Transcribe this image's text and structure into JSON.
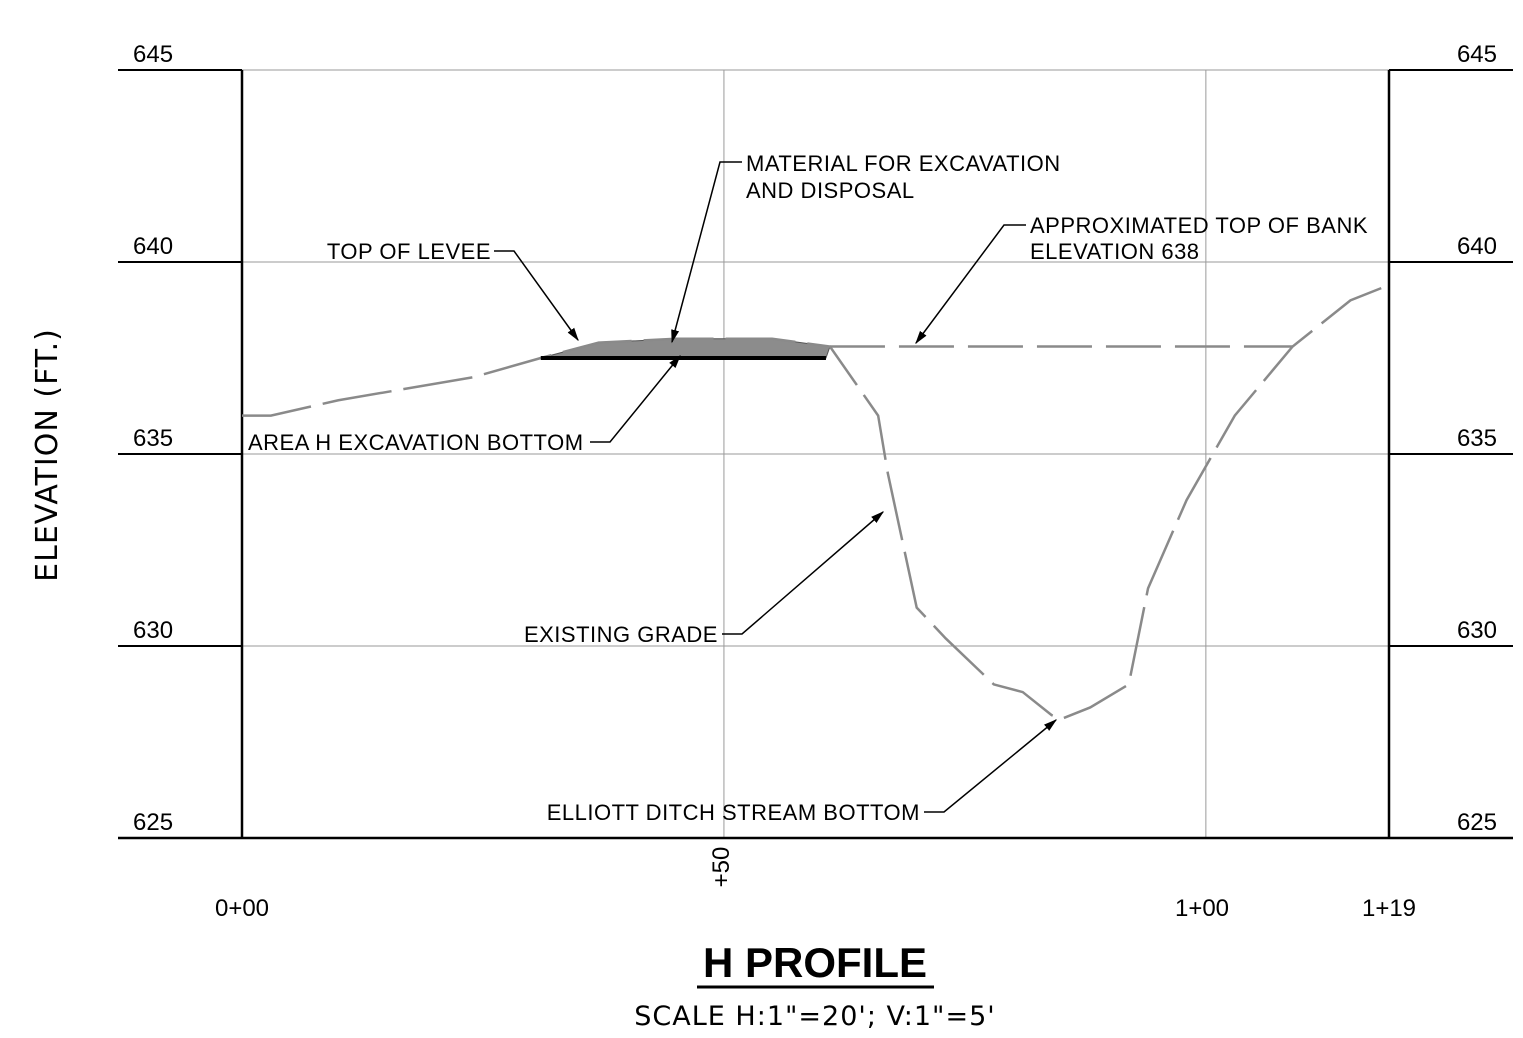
{
  "title": "H PROFILE",
  "subtitle": "SCALE  H:1\"=20'; V:1\"=5'",
  "y_axis_label": "ELEVATION  (FT.)",
  "elevation_ticks": [
    "625",
    "630",
    "635",
    "640",
    "645"
  ],
  "station_labels": {
    "start": "0+00",
    "mid": "+50",
    "hundred": "1+00",
    "end": "1+19"
  },
  "annotations": {
    "material": [
      "MATERIAL FOR EXCAVATION",
      "AND DISPOSAL"
    ],
    "top_of_bank": [
      "APPROXIMATED TOP OF BANK",
      "ELEVATION 638"
    ],
    "top_of_levee": "TOP OF LEVEE",
    "excavation_bottom": "AREA H EXCAVATION BOTTOM",
    "existing_grade": "EXISTING GRADE",
    "stream_bottom": "ELLIOTT DITCH STREAM BOTTOM"
  },
  "profile_data": {
    "station_range": [
      0,
      119
    ],
    "elevation_range": [
      625,
      645
    ],
    "existing_grade": [
      [
        0,
        636.0
      ],
      [
        3,
        636.0
      ],
      [
        10,
        636.4
      ],
      [
        24,
        637.0
      ],
      [
        31,
        637.5
      ],
      [
        37,
        637.9
      ],
      [
        45,
        638.0
      ],
      [
        55,
        638.0
      ],
      [
        61,
        637.8
      ],
      [
        66,
        636.0
      ],
      [
        67,
        634.5
      ],
      [
        70,
        631.0
      ],
      [
        73,
        630.2
      ],
      [
        78,
        629.0
      ],
      [
        81,
        628.8
      ],
      [
        84,
        628.2
      ],
      [
        85,
        628.1
      ],
      [
        88,
        628.4
      ],
      [
        92,
        629.0
      ],
      [
        94,
        631.5
      ],
      [
        98,
        633.8
      ],
      [
        103,
        636.0
      ],
      [
        109,
        637.8
      ],
      [
        115,
        639.0
      ],
      [
        119,
        639.4
      ]
    ],
    "top_of_bank_elevation": 637.8,
    "top_of_bank_range": [
      61,
      109
    ],
    "excavation_bottom_elevation": 637.5,
    "excavation_range": [
      31,
      61
    ]
  }
}
